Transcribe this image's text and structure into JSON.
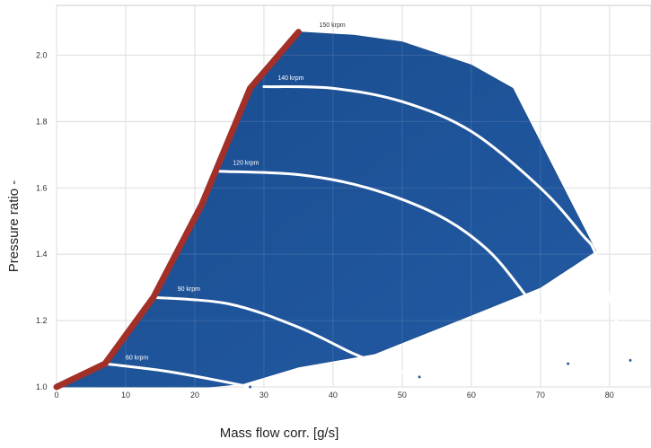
{
  "chart_data": {
    "type": "line",
    "title": "",
    "xlabel": "Mass flow corr. [g/s]",
    "ylabel": "Pressure ratio -",
    "xlim": [
      0,
      86
    ],
    "ylim": [
      1.0,
      2.15
    ],
    "xticks": [
      0,
      10,
      20,
      30,
      40,
      50,
      60,
      70,
      80
    ],
    "yticks": [
      1.0,
      1.2,
      1.4,
      1.6,
      1.8,
      2.0
    ],
    "xtick_labels": [
      "0",
      "10",
      "20",
      "30",
      "40",
      "50",
      "60",
      "70",
      "80"
    ],
    "ytick_labels": [
      "1.0",
      "1.2",
      "1.4",
      "1.6",
      "1.8",
      "2.0"
    ],
    "grid": true,
    "map_region": {
      "color": "#1d4f91",
      "boundary": [
        [
          0,
          1.0
        ],
        [
          7,
          1.07
        ],
        [
          14,
          1.27
        ],
        [
          21,
          1.55
        ],
        [
          28,
          1.9
        ],
        [
          35,
          2.07
        ],
        [
          43,
          2.06
        ],
        [
          50,
          2.04
        ],
        [
          60,
          1.97
        ],
        [
          66,
          1.9
        ],
        [
          78,
          1.41
        ],
        [
          70,
          1.3
        ],
        [
          58,
          1.2
        ],
        [
          46,
          1.1
        ],
        [
          35,
          1.06
        ],
        [
          27,
          1.01
        ],
        [
          22,
          1.0
        ]
      ]
    },
    "surge_line": {
      "color": "#a33028",
      "points": [
        [
          0,
          1.0
        ],
        [
          7,
          1.07
        ],
        [
          14,
          1.27
        ],
        [
          21,
          1.55
        ],
        [
          28,
          1.9
        ],
        [
          35,
          2.07
        ]
      ]
    },
    "series": [
      {
        "name": "60 krpm",
        "values": [
          [
            7,
            1.07
          ],
          [
            15,
            1.05
          ],
          [
            22,
            1.025
          ],
          [
            28,
            1.0
          ]
        ]
      },
      {
        "name": "90 krpm",
        "values": [
          [
            14,
            1.27
          ],
          [
            25,
            1.25
          ],
          [
            35,
            1.18
          ],
          [
            43,
            1.1
          ],
          [
            48,
            1.06
          ],
          [
            52.5,
            1.03
          ]
        ]
      },
      {
        "name": "120 krpm",
        "values": [
          [
            23.5,
            1.65
          ],
          [
            35,
            1.64
          ],
          [
            45,
            1.6
          ],
          [
            55,
            1.52
          ],
          [
            62,
            1.42
          ],
          [
            67,
            1.3
          ],
          [
            71,
            1.18
          ],
          [
            74,
            1.07
          ]
        ]
      },
      {
        "name": "140 krpm",
        "values": [
          [
            30,
            1.905
          ],
          [
            40,
            1.9
          ],
          [
            50,
            1.86
          ],
          [
            60,
            1.77
          ],
          [
            70,
            1.6
          ],
          [
            76,
            1.46
          ],
          [
            78,
            1.4
          ],
          [
            81,
            1.2
          ],
          [
            83,
            1.08
          ]
        ]
      },
      {
        "name": "150 krpm",
        "values": []
      }
    ],
    "speed_labels": [
      {
        "text": "60 krpm",
        "x": 10,
        "y": 1.083
      },
      {
        "text": "90 krpm",
        "x": 17.5,
        "y": 1.29
      },
      {
        "text": "120 krpm",
        "x": 25.5,
        "y": 1.67
      },
      {
        "text": "140 krpm",
        "x": 32,
        "y": 1.925
      },
      {
        "text": "150 krpm",
        "x": 38,
        "y": 2.085
      }
    ]
  }
}
